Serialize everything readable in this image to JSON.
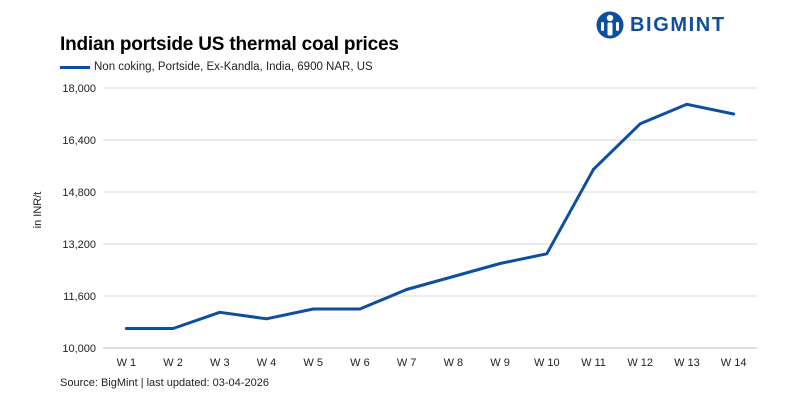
{
  "header": {
    "title": "Indian portside US thermal coal prices",
    "brand_name": "BIGMINT",
    "brand_icon": "bigmint-logo-icon",
    "brand_color": "#0d4f9e"
  },
  "footer": {
    "source": "Source: BigMint | last updated: 03-04-2026"
  },
  "chart_data": {
    "type": "line",
    "title": "Indian portside US thermal coal prices",
    "xlabel": "",
    "ylabel": "in INR/t",
    "categories": [
      "W 1",
      "W 2",
      "W 3",
      "W 4",
      "W 5",
      "W 6",
      "W 7",
      "W 8",
      "W 9",
      "W 10",
      "W 11",
      "W 12",
      "W 13",
      "W 14"
    ],
    "series": [
      {
        "name": "Non coking, Portside, Ex-Kandla, India, 6900 NAR, US",
        "color": "#0d4f9e",
        "values": [
          10600,
          10600,
          11100,
          10900,
          11200,
          11200,
          11800,
          12200,
          12600,
          12900,
          15500,
          16900,
          17500,
          17200
        ]
      }
    ],
    "ylim": [
      10000,
      18000
    ],
    "yticks": [
      10000,
      11600,
      13200,
      14800,
      16400,
      18000
    ],
    "ytick_labels": [
      "10,000",
      "11,600",
      "13,200",
      "14,800",
      "16,400",
      "18,000"
    ],
    "grid": "horizontal",
    "legend": "top-left"
  }
}
